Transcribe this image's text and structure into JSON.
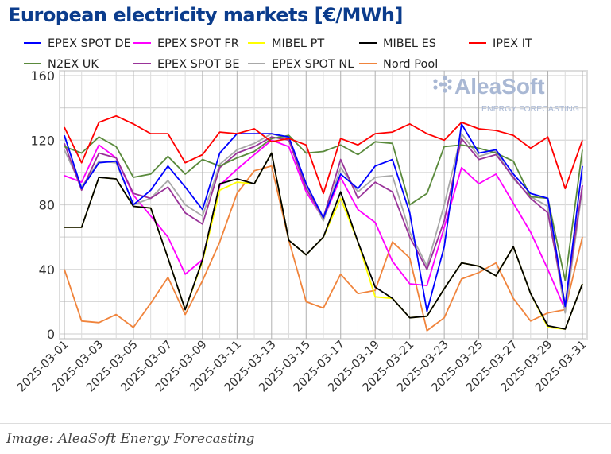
{
  "chart_data": {
    "type": "line",
    "title": "European electricity markets [€/MWh]",
    "xlabel": "",
    "ylabel": "",
    "ylim": [
      0,
      160
    ],
    "yticks": [
      0,
      40,
      80,
      120,
      160
    ],
    "grid": true,
    "legend_position": "top",
    "x": [
      "2025-03-01",
      "2025-03-02",
      "2025-03-03",
      "2025-03-04",
      "2025-03-05",
      "2025-03-06",
      "2025-03-07",
      "2025-03-08",
      "2025-03-09",
      "2025-03-10",
      "2025-03-11",
      "2025-03-12",
      "2025-03-13",
      "2025-03-14",
      "2025-03-15",
      "2025-03-16",
      "2025-03-17",
      "2025-03-18",
      "2025-03-19",
      "2025-03-20",
      "2025-03-21",
      "2025-03-22",
      "2025-03-23",
      "2025-03-24",
      "2025-03-25",
      "2025-03-26",
      "2025-03-27",
      "2025-03-28",
      "2025-03-29",
      "2025-03-30",
      "2025-03-31"
    ],
    "xtick_labels": [
      "2025-03-01",
      "2025-03-03",
      "2025-03-05",
      "2025-03-07",
      "2025-03-09",
      "2025-03-11",
      "2025-03-13",
      "2025-03-15",
      "2025-03-17",
      "2025-03-19",
      "2025-03-21",
      "2025-03-23",
      "2025-03-25",
      "2025-03-27",
      "2025-03-29",
      "2025-03-31"
    ],
    "series": [
      {
        "name": "Nord Pool",
        "color": "#f0843c",
        "values": [
          40,
          8,
          7,
          12,
          4,
          19,
          35,
          12,
          33,
          57,
          87,
          101,
          104,
          58,
          20,
          16,
          37,
          25,
          27,
          57,
          47,
          2,
          10,
          34,
          38,
          44,
          22,
          8,
          13,
          15,
          60
        ]
      },
      {
        "name": "EPEX SPOT FR",
        "color": "#ff00ff",
        "values": [
          98,
          94,
          117,
          109,
          86,
          73,
          60,
          37,
          46,
          92,
          102,
          111,
          120,
          116,
          88,
          71,
          97,
          77,
          69,
          45,
          31,
          30,
          66,
          103,
          93,
          99,
          81,
          63,
          40,
          15,
          92
        ]
      },
      {
        "name": "EPEX SPOT NL",
        "color": "#a8a8a8",
        "values": [
          114,
          91,
          107,
          106,
          80,
          84,
          95,
          80,
          73,
          105,
          114,
          118,
          124,
          121,
          91,
          70,
          103,
          88,
          97,
          98,
          63,
          42,
          80,
          124,
          110,
          113,
          96,
          85,
          79,
          13,
          90
        ]
      },
      {
        "name": "EPEX SPOT BE",
        "color": "#993399",
        "values": [
          118,
          89,
          112,
          109,
          87,
          84,
          91,
          75,
          68,
          103,
          112,
          116,
          122,
          120,
          90,
          72,
          108,
          84,
          94,
          88,
          60,
          40,
          70,
          121,
          108,
          111,
          97,
          84,
          75,
          18,
          92
        ]
      },
      {
        "name": "N2EX UK",
        "color": "#5a8a3c",
        "values": [
          116,
          112,
          122,
          116,
          97,
          99,
          110,
          99,
          108,
          104,
          109,
          113,
          121,
          123,
          112,
          113,
          117,
          111,
          119,
          118,
          80,
          87,
          116,
          117,
          115,
          112,
          107,
          85,
          84,
          33,
          114
        ]
      },
      {
        "name": "MIBEL PT",
        "color": "#ffff00",
        "values": [
          66,
          66,
          97,
          96,
          79,
          78,
          47,
          15,
          45,
          89,
          94,
          93,
          112,
          58,
          49,
          60,
          84,
          57,
          23,
          22,
          10,
          11,
          28,
          44,
          42,
          36,
          54,
          25,
          4,
          3,
          31
        ]
      },
      {
        "name": "MIBEL ES",
        "color": "#000000",
        "values": [
          66,
          66,
          97,
          96,
          79,
          78,
          47,
          15,
          46,
          93,
          96,
          93,
          112,
          58,
          49,
          60,
          88,
          57,
          29,
          22,
          10,
          11,
          28,
          44,
          42,
          36,
          54,
          25,
          5,
          3,
          31
        ]
      },
      {
        "name": "EPEX SPOT DE",
        "color": "#0000ff",
        "values": [
          123,
          90,
          106,
          107,
          80,
          89,
          104,
          91,
          77,
          112,
          124,
          124,
          124,
          122,
          93,
          72,
          99,
          90,
          104,
          108,
          75,
          14,
          54,
          130,
          112,
          114,
          99,
          87,
          84,
          17,
          104
        ]
      },
      {
        "name": "IPEX IT",
        "color": "#ff0000",
        "values": [
          128,
          106,
          131,
          135,
          130,
          124,
          124,
          106,
          111,
          125,
          124,
          127,
          119,
          121,
          117,
          87,
          121,
          117,
          124,
          125,
          130,
          124,
          120,
          131,
          127,
          126,
          123,
          115,
          122,
          90,
          120
        ]
      }
    ],
    "legend_order": [
      "EPEX SPOT DE",
      "EPEX SPOT FR",
      "MIBEL PT",
      "MIBEL ES",
      "IPEX IT",
      "N2EX UK",
      "EPEX SPOT BE",
      "EPEX SPOT NL",
      "Nord Pool"
    ]
  },
  "watermark": {
    "brand": "AleaSoft",
    "tagline": "ENERGY FORECASTING"
  },
  "caption": "Image: AleaSoft Energy Forecasting"
}
